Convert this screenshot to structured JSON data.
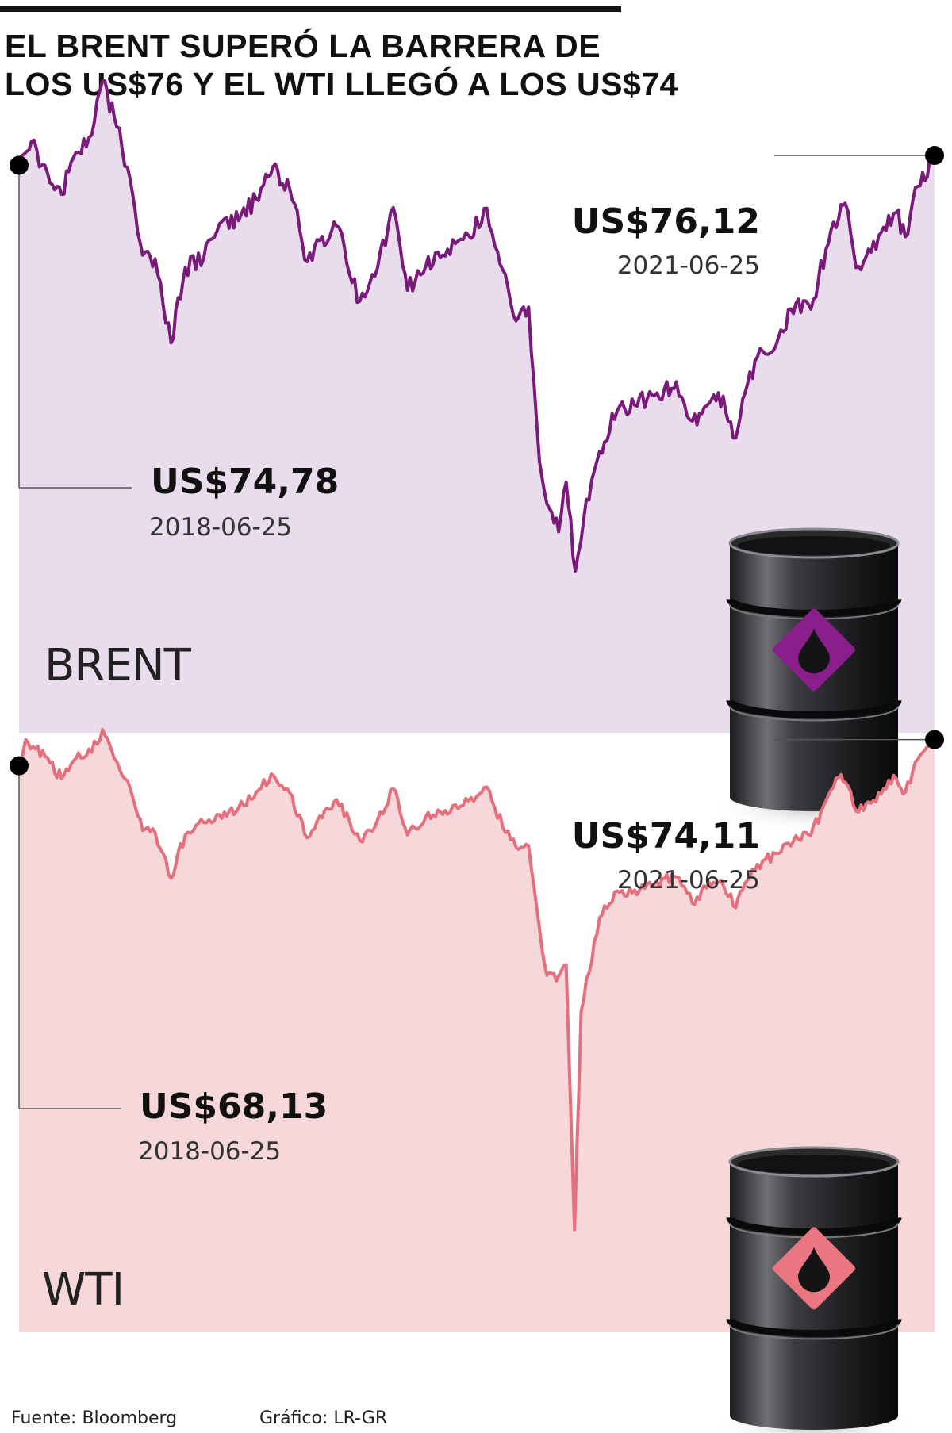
{
  "headline": {
    "line1": "EL BRENT SUPERÓ LA BARRERA DE",
    "line2": "LOS US$76 Y EL WTI LLEGÓ A LOS US$74"
  },
  "footer": {
    "source": "Fuente: Bloomberg",
    "credit": "Gráfico: LR-GR"
  },
  "chart_data": [
    {
      "type": "area",
      "series_name": "BRENT",
      "colors": {
        "line": "#7a1a7a",
        "fill": "#e9dcec",
        "badge": "#8a1f8c"
      },
      "icon": "oil-barrel-icon",
      "x_range": [
        "2018-06-25",
        "2021-06-25"
      ],
      "y_range": [
        10,
        90
      ],
      "start": {
        "date": "2018-06-25",
        "value": 74.78,
        "label": "US$74,78"
      },
      "end": {
        "date": "2021-06-25",
        "value": 76.12,
        "label": "US$76,12"
      },
      "points": [
        [
          "2018-06-25",
          74.8
        ],
        [
          "2018-07-10",
          78.1
        ],
        [
          "2018-08-01",
          72.4
        ],
        [
          "2018-08-15",
          70.8
        ],
        [
          "2018-09-01",
          76.5
        ],
        [
          "2018-09-20",
          78.9
        ],
        [
          "2018-10-03",
          86.3
        ],
        [
          "2018-10-20",
          80.0
        ],
        [
          "2018-11-05",
          72.9
        ],
        [
          "2018-11-20",
          62.5
        ],
        [
          "2018-12-05",
          62.0
        ],
        [
          "2018-12-24",
          50.5
        ],
        [
          "2019-01-10",
          60.8
        ],
        [
          "2019-02-01",
          62.0
        ],
        [
          "2019-02-20",
          66.8
        ],
        [
          "2019-03-15",
          67.2
        ],
        [
          "2019-04-05",
          70.2
        ],
        [
          "2019-04-25",
          74.6
        ],
        [
          "2019-05-15",
          71.6
        ],
        [
          "2019-06-05",
          61.6
        ],
        [
          "2019-06-20",
          64.5
        ],
        [
          "2019-07-10",
          66.5
        ],
        [
          "2019-08-07",
          56.2
        ],
        [
          "2019-08-25",
          59.6
        ],
        [
          "2019-09-16",
          69.0
        ],
        [
          "2019-10-03",
          57.7
        ],
        [
          "2019-10-25",
          61.0
        ],
        [
          "2019-11-20",
          63.3
        ],
        [
          "2019-12-15",
          65.2
        ],
        [
          "2020-01-06",
          68.9
        ],
        [
          "2020-01-25",
          60.5
        ],
        [
          "2020-02-10",
          53.5
        ],
        [
          "2020-02-25",
          55.4
        ],
        [
          "2020-03-09",
          34.3
        ],
        [
          "2020-03-18",
          28.5
        ],
        [
          "2020-04-01",
          24.7
        ],
        [
          "2020-04-10",
          31.5
        ],
        [
          "2020-04-21",
          19.3
        ],
        [
          "2020-05-01",
          26.4
        ],
        [
          "2020-05-20",
          35.7
        ],
        [
          "2020-06-10",
          41.2
        ],
        [
          "2020-07-01",
          42.0
        ],
        [
          "2020-07-25",
          43.3
        ],
        [
          "2020-08-20",
          45.2
        ],
        [
          "2020-09-08",
          39.8
        ],
        [
          "2020-09-25",
          41.9
        ],
        [
          "2020-10-15",
          43.2
        ],
        [
          "2020-10-30",
          37.5
        ],
        [
          "2020-11-10",
          43.6
        ],
        [
          "2020-11-25",
          48.6
        ],
        [
          "2020-12-20",
          51.2
        ],
        [
          "2021-01-10",
          55.9
        ],
        [
          "2021-01-28",
          55.1
        ],
        [
          "2021-02-15",
          63.3
        ],
        [
          "2021-03-05",
          69.4
        ],
        [
          "2021-03-10",
          69.6
        ],
        [
          "2021-03-23",
          60.8
        ],
        [
          "2021-04-10",
          62.9
        ],
        [
          "2021-04-25",
          66.3
        ],
        [
          "2021-05-10",
          68.3
        ],
        [
          "2021-05-21",
          65.0
        ],
        [
          "2021-06-05",
          71.9
        ],
        [
          "2021-06-25",
          76.1
        ]
      ]
    },
    {
      "type": "area",
      "series_name": "WTI",
      "colors": {
        "line": "#e5707d",
        "fill": "#f6d8db",
        "badge": "#ea7681"
      },
      "icon": "oil-barrel-icon",
      "x_range": [
        "2018-06-25",
        "2021-06-25"
      ],
      "y_range": [
        -40,
        80
      ],
      "start": {
        "date": "2018-06-25",
        "value": 68.13,
        "label": "US$68,13"
      },
      "end": {
        "date": "2021-06-25",
        "value": 74.11,
        "label": "US$74,11"
      },
      "points": [
        [
          "2018-06-25",
          68.1
        ],
        [
          "2018-07-03",
          74.1
        ],
        [
          "2018-08-01",
          68.8
        ],
        [
          "2018-08-15",
          65.2
        ],
        [
          "2018-09-01",
          69.8
        ],
        [
          "2018-09-20",
          71.2
        ],
        [
          "2018-10-03",
          76.4
        ],
        [
          "2018-10-20",
          69.1
        ],
        [
          "2018-11-05",
          63.1
        ],
        [
          "2018-11-20",
          53.4
        ],
        [
          "2018-12-05",
          52.9
        ],
        [
          "2018-12-24",
          42.5
        ],
        [
          "2019-01-10",
          52.4
        ],
        [
          "2019-02-01",
          55.2
        ],
        [
          "2019-02-20",
          57.0
        ],
        [
          "2019-03-15",
          58.6
        ],
        [
          "2019-04-05",
          62.1
        ],
        [
          "2019-04-23",
          66.3
        ],
        [
          "2019-05-15",
          62.0
        ],
        [
          "2019-06-05",
          51.7
        ],
        [
          "2019-06-20",
          56.7
        ],
        [
          "2019-07-10",
          60.4
        ],
        [
          "2019-08-07",
          51.1
        ],
        [
          "2019-08-25",
          54.2
        ],
        [
          "2019-09-16",
          62.9
        ],
        [
          "2019-10-03",
          52.4
        ],
        [
          "2019-10-25",
          56.6
        ],
        [
          "2019-11-20",
          57.1
        ],
        [
          "2019-12-15",
          60.1
        ],
        [
          "2020-01-06",
          63.3
        ],
        [
          "2020-01-25",
          54.2
        ],
        [
          "2020-02-10",
          49.6
        ],
        [
          "2020-02-25",
          49.9
        ],
        [
          "2020-03-09",
          31.1
        ],
        [
          "2020-03-18",
          20.4
        ],
        [
          "2020-04-01",
          20.3
        ],
        [
          "2020-04-10",
          22.8
        ],
        [
          "2020-04-20",
          -37.6
        ],
        [
          "2020-04-28",
          12.3
        ],
        [
          "2020-05-20",
          33.5
        ],
        [
          "2020-06-10",
          39.6
        ],
        [
          "2020-07-01",
          39.8
        ],
        [
          "2020-07-25",
          41.3
        ],
        [
          "2020-08-20",
          42.8
        ],
        [
          "2020-09-08",
          36.8
        ],
        [
          "2020-09-25",
          40.3
        ],
        [
          "2020-10-15",
          41.0
        ],
        [
          "2020-10-30",
          35.8
        ],
        [
          "2020-11-10",
          41.4
        ],
        [
          "2020-11-25",
          45.7
        ],
        [
          "2020-12-20",
          48.2
        ],
        [
          "2021-01-10",
          52.2
        ],
        [
          "2021-01-28",
          52.3
        ],
        [
          "2021-02-15",
          60.1
        ],
        [
          "2021-03-05",
          66.1
        ],
        [
          "2021-03-10",
          64.4
        ],
        [
          "2021-03-23",
          57.8
        ],
        [
          "2021-04-10",
          59.6
        ],
        [
          "2021-04-25",
          62.9
        ],
        [
          "2021-05-10",
          65.3
        ],
        [
          "2021-05-21",
          62.1
        ],
        [
          "2021-06-05",
          69.6
        ],
        [
          "2021-06-25",
          74.1
        ]
      ]
    }
  ]
}
